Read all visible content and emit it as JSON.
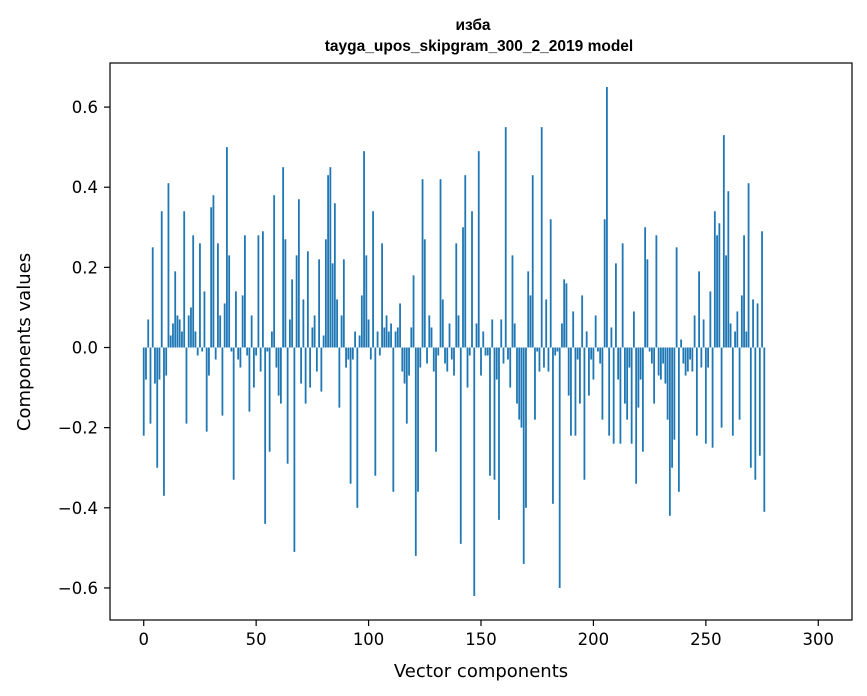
{
  "chart_data": {
    "type": "bar",
    "title": "изба",
    "subtitle": "tayga_upos_skipgram_300_2_2019 model",
    "xlabel": "Vector components",
    "ylabel": "Components values",
    "xlim": [
      -15,
      315
    ],
    "ylim": [
      -0.68,
      0.71
    ],
    "xticks": [
      0,
      50,
      100,
      150,
      200,
      250,
      300
    ],
    "yticks": [
      -0.6,
      -0.4,
      -0.2,
      0.0,
      0.2,
      0.4,
      0.6
    ],
    "xtick_labels": [
      "0",
      "50",
      "100",
      "150",
      "200",
      "250",
      "300"
    ],
    "ytick_labels": [
      "−0.6",
      "−0.4",
      "−0.2",
      "0.0",
      "0.2",
      "0.4",
      "0.6"
    ],
    "bar_color": "#1f77b4",
    "values": [
      -0.22,
      -0.08,
      0.07,
      -0.19,
      0.25,
      -0.09,
      -0.3,
      -0.08,
      0.34,
      -0.37,
      -0.07,
      0.41,
      0.03,
      0.06,
      0.19,
      0.08,
      0.07,
      0.04,
      0.34,
      -0.19,
      0.08,
      0.1,
      0.28,
      0.04,
      -0.02,
      0.26,
      -0.01,
      0.14,
      -0.21,
      -0.07,
      0.35,
      0.38,
      -0.03,
      0.26,
      0.08,
      -0.17,
      0.11,
      0.5,
      0.23,
      -0.01,
      -0.33,
      0.14,
      -0.03,
      -0.05,
      0.13,
      0.28,
      -0.02,
      -0.16,
      0.08,
      -0.1,
      -0.02,
      0.28,
      -0.06,
      0.29,
      -0.44,
      -0.01,
      -0.26,
      0.04,
      0.38,
      -0.05,
      -0.12,
      -0.14,
      0.45,
      0.27,
      -0.29,
      0.07,
      0.17,
      -0.51,
      0.23,
      0.37,
      -0.09,
      0.12,
      -0.14,
      0.24,
      -0.1,
      0.05,
      0.08,
      -0.06,
      0.22,
      -0.11,
      0.03,
      0.27,
      0.43,
      0.45,
      0.21,
      0.36,
      0.12,
      -0.15,
      0.08,
      0.22,
      -0.05,
      -0.03,
      -0.34,
      -0.03,
      0.04,
      -0.4,
      0.03,
      0.13,
      0.49,
      0.23,
      0.07,
      -0.03,
      0.34,
      -0.32,
      0.04,
      -0.02,
      0.26,
      0.05,
      0.08,
      0.04,
      0.06,
      -0.36,
      0.04,
      0.05,
      0.11,
      -0.06,
      -0.09,
      -0.19,
      -0.07,
      0.05,
      0.18,
      -0.52,
      -0.36,
      -0.05,
      0.42,
      0.27,
      -0.04,
      0.08,
      0.05,
      -0.06,
      -0.26,
      -0.02,
      0.42,
      0.12,
      -0.04,
      -0.06,
      0.06,
      -0.03,
      -0.07,
      0.26,
      0.08,
      -0.49,
      0.3,
      0.43,
      -0.1,
      -0.02,
      0.34,
      -0.62,
      0.06,
      0.49,
      -0.07,
      0.04,
      -0.02,
      -0.02,
      -0.32,
      0.07,
      -0.33,
      -0.08,
      -0.43,
      0.07,
      -0.04,
      0.55,
      -0.03,
      -0.1,
      0.23,
      0.06,
      -0.14,
      -0.18,
      -0.2,
      -0.54,
      -0.4,
      0.19,
      0.13,
      0.43,
      -0.18,
      -0.01,
      -0.06,
      0.55,
      -0.05,
      0.12,
      -0.06,
      0.32,
      -0.39,
      -0.02,
      -0.01,
      -0.6,
      0.06,
      0.17,
      0.16,
      -0.12,
      -0.22,
      0.09,
      -0.22,
      -0.03,
      -0.14,
      0.13,
      -0.33,
      0.04,
      -0.12,
      -0.03,
      -0.08,
      0.08,
      -0.01,
      -0.04,
      -0.18,
      0.32,
      0.65,
      -0.22,
      0.05,
      -0.24,
      0.21,
      -0.08,
      -0.24,
      0.26,
      -0.14,
      -0.18,
      -0.05,
      -0.24,
      0.09,
      -0.34,
      -0.15,
      -0.08,
      -0.26,
      0.3,
      0.22,
      -0.01,
      -0.04,
      -0.14,
      0.28,
      -0.07,
      -0.08,
      -0.04,
      -0.09,
      -0.18,
      -0.42,
      -0.3,
      -0.23,
      0.25,
      -0.36,
      0.02,
      -0.04,
      -0.07,
      -0.06,
      -0.03,
      -0.06,
      0.08,
      -0.22,
      0.19,
      -0.05,
      0.07,
      -0.24,
      -0.05,
      0.14,
      -0.25,
      0.34,
      0.28,
      0.31,
      -0.2,
      0.53,
      0.23,
      0.39,
      0.06,
      -0.22,
      0.04,
      0.09,
      -0.18,
      0.13,
      0.28,
      0.04,
      0.41,
      -0.3,
      0.12,
      -0.33,
      0.11,
      -0.27,
      0.29,
      -0.41
    ]
  }
}
